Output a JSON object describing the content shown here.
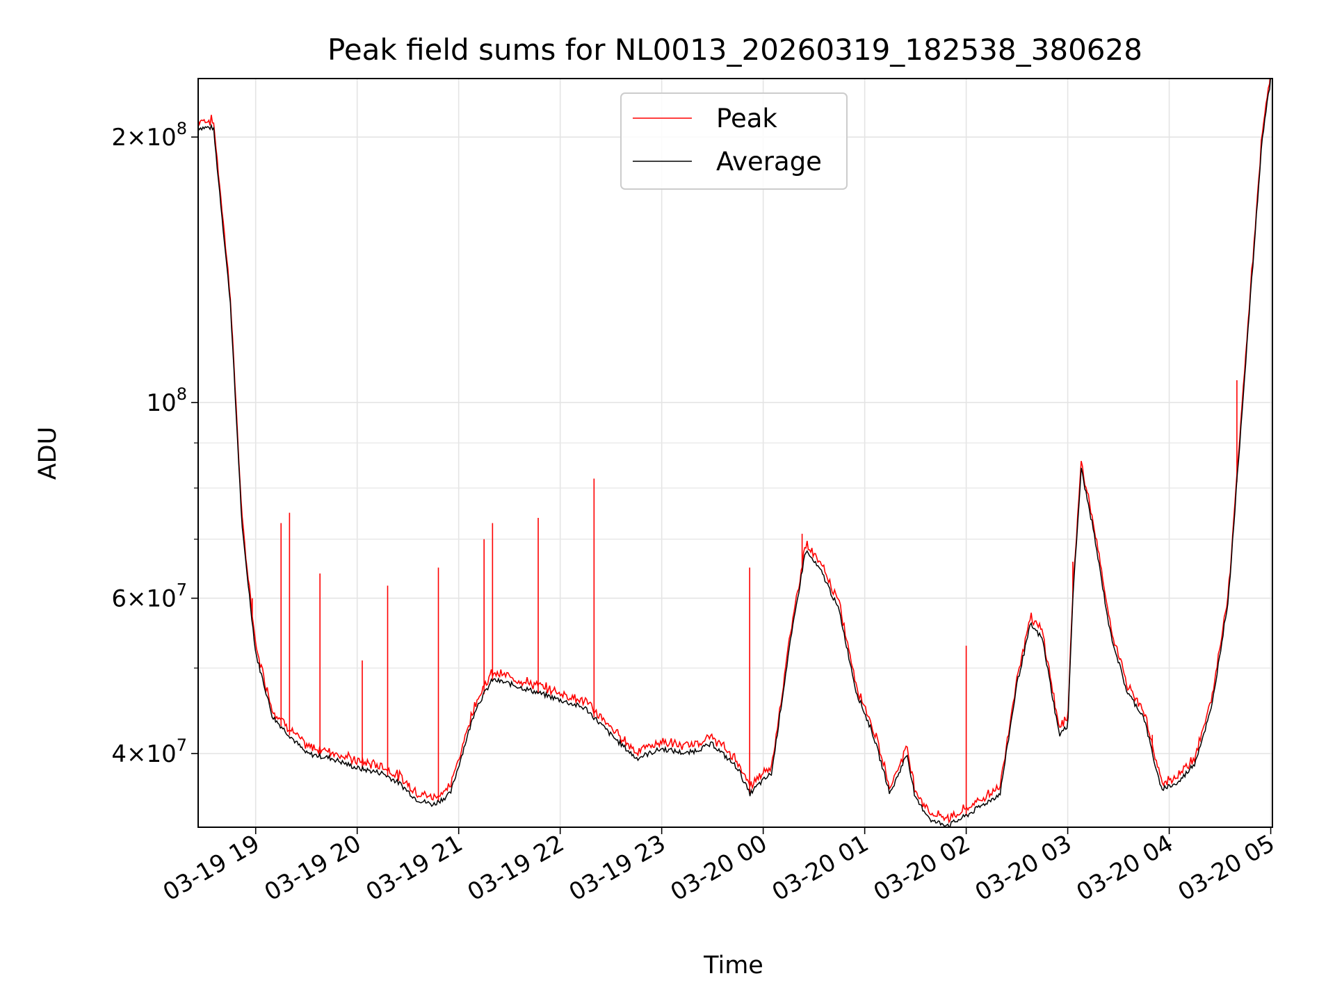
{
  "chart_data": {
    "type": "line",
    "title": "Peak field sums for NL0013_20260319_182538_380628",
    "xlabel": "Time",
    "ylabel": "ADU",
    "yscale": "log",
    "xlim": [
      "2026-03-19 18:26",
      "2026-03-20 05:01"
    ],
    "ylim": [
      33000000,
      233000000
    ],
    "grid": true,
    "legend_position": "top-center",
    "x_ticks": [
      "03-19 19",
      "03-19 20",
      "03-19 21",
      "03-19 22",
      "03-19 23",
      "03-20 00",
      "03-20 01",
      "03-20 02",
      "03-20 03",
      "03-20 04",
      "03-20 05"
    ],
    "y_ticks": [
      {
        "value": 40000000,
        "base": "4×10",
        "exp": "7"
      },
      {
        "value": 60000000,
        "base": "6×10",
        "exp": "7"
      },
      {
        "value": 100000000,
        "base": "10",
        "exp": "8"
      },
      {
        "value": 200000000,
        "base": "2×10",
        "exp": "8"
      }
    ],
    "y_minor_ticks": [
      30000000,
      50000000,
      70000000,
      80000000,
      90000000
    ],
    "series": [
      {
        "name": "Peak",
        "color": "#ff0000"
      },
      {
        "name": "Average",
        "color": "#000000"
      }
    ],
    "x": [
      "2026-03-19 18:26",
      "2026-03-19 18:35",
      "2026-03-19 18:45",
      "2026-03-19 18:52",
      "2026-03-19 19:00",
      "2026-03-19 19:10",
      "2026-03-19 19:30",
      "2026-03-19 19:45",
      "2026-03-19 20:00",
      "2026-03-19 20:15",
      "2026-03-19 20:25",
      "2026-03-19 20:35",
      "2026-03-19 20:45",
      "2026-03-19 20:55",
      "2026-03-19 21:10",
      "2026-03-19 21:20",
      "2026-03-19 21:30",
      "2026-03-19 21:45",
      "2026-03-19 22:00",
      "2026-03-19 22:15",
      "2026-03-19 22:30",
      "2026-03-19 22:45",
      "2026-03-19 23:00",
      "2026-03-19 23:15",
      "2026-03-19 23:30",
      "2026-03-19 23:45",
      "2026-03-19 23:52",
      "2026-03-19 23:58",
      "2026-03-20 00:05",
      "2026-03-20 00:15",
      "2026-03-20 00:25",
      "2026-03-20 00:35",
      "2026-03-20 00:45",
      "2026-03-20 00:55",
      "2026-03-20 01:05",
      "2026-03-20 01:15",
      "2026-03-20 01:25",
      "2026-03-20 01:30",
      "2026-03-20 01:35",
      "2026-03-20 01:40",
      "2026-03-20 01:50",
      "2026-03-20 02:00",
      "2026-03-20 02:10",
      "2026-03-20 02:20",
      "2026-03-20 02:30",
      "2026-03-20 02:38",
      "2026-03-20 02:45",
      "2026-03-20 02:55",
      "2026-03-20 03:00",
      "2026-03-20 03:03",
      "2026-03-20 03:08",
      "2026-03-20 03:15",
      "2026-03-20 03:25",
      "2026-03-20 03:35",
      "2026-03-20 03:45",
      "2026-03-20 03:55",
      "2026-03-20 04:05",
      "2026-03-20 04:15",
      "2026-03-20 04:25",
      "2026-03-20 04:35",
      "2026-03-20 04:45",
      "2026-03-20 04:55",
      "2026-03-20 05:00"
    ],
    "average": [
      205000000,
      205000000,
      130000000,
      72000000,
      52000000,
      44000000,
      40000000,
      39500000,
      38500000,
      38000000,
      37000000,
      35500000,
      35000000,
      36000000,
      45000000,
      48500000,
      48000000,
      47000000,
      46000000,
      45000000,
      42000000,
      39500000,
      40500000,
      40000000,
      41000000,
      38500000,
      36000000,
      37000000,
      38000000,
      52000000,
      68000000,
      64000000,
      58000000,
      47000000,
      42000000,
      36000000,
      40000000,
      35500000,
      34500000,
      33500000,
      33200000,
      34000000,
      35000000,
      36000000,
      48000000,
      56000000,
      54000000,
      42000000,
      43000000,
      60000000,
      84000000,
      72000000,
      55000000,
      47000000,
      44000000,
      36500000,
      37000000,
      39000000,
      45000000,
      60000000,
      110000000,
      200000000,
      233000000
    ],
    "peak_spikes": [
      {
        "x": "2026-03-19 18:58",
        "y": 60000000
      },
      {
        "x": "2026-03-19 19:15",
        "y": 73000000
      },
      {
        "x": "2026-03-19 19:20",
        "y": 75000000
      },
      {
        "x": "2026-03-19 19:38",
        "y": 64000000
      },
      {
        "x": "2026-03-19 20:03",
        "y": 51000000
      },
      {
        "x": "2026-03-19 20:18",
        "y": 62000000
      },
      {
        "x": "2026-03-19 20:48",
        "y": 65000000
      },
      {
        "x": "2026-03-19 21:15",
        "y": 70000000
      },
      {
        "x": "2026-03-19 21:20",
        "y": 73000000
      },
      {
        "x": "2026-03-19 21:47",
        "y": 74000000
      },
      {
        "x": "2026-03-19 22:20",
        "y": 82000000
      },
      {
        "x": "2026-03-19 23:52",
        "y": 65000000
      },
      {
        "x": "2026-03-20 00:23",
        "y": 71000000
      },
      {
        "x": "2026-03-20 02:00",
        "y": 53000000
      },
      {
        "x": "2026-03-20 03:03",
        "y": 66000000
      },
      {
        "x": "2026-03-20 03:50",
        "y": 42000000
      },
      {
        "x": "2026-03-20 04:40",
        "y": 106000000
      }
    ]
  }
}
